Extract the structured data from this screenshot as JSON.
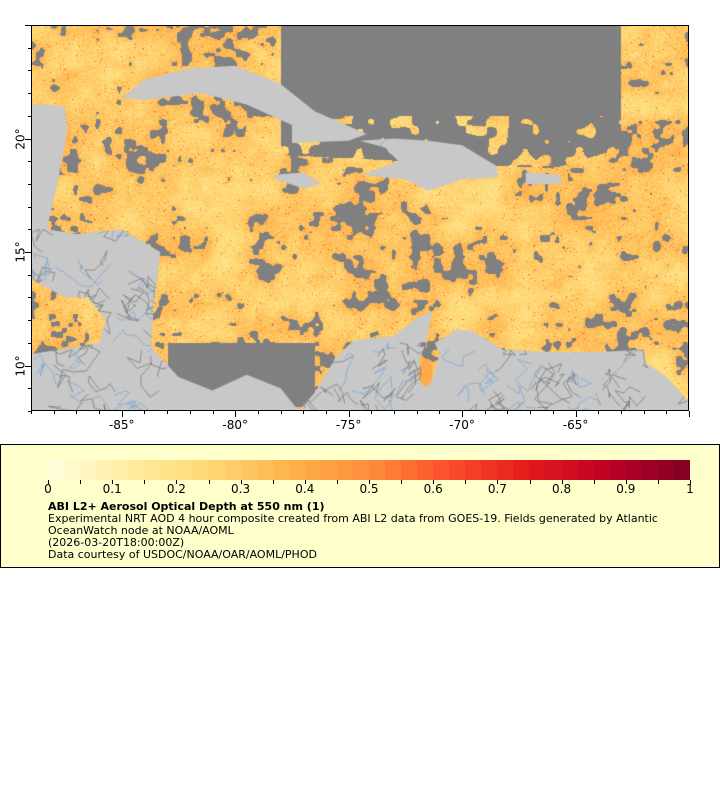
{
  "map": {
    "lon_range": [
      -89,
      -60
    ],
    "lat_range": [
      8,
      25
    ],
    "x_ticks": [
      {
        "value": -85,
        "label": "-85°"
      },
      {
        "value": -80,
        "label": "-80°"
      },
      {
        "value": -75,
        "label": "-75°"
      },
      {
        "value": -70,
        "label": "-70°"
      },
      {
        "value": -65,
        "label": "-65°"
      }
    ],
    "y_ticks": [
      {
        "value": 20,
        "label": "20°"
      },
      {
        "value": 15,
        "label": "15°"
      },
      {
        "value": 10,
        "label": "10°"
      }
    ],
    "colors": {
      "land": "#c8c8c8",
      "no_data": "#808080",
      "rivers": "#6a9fd8",
      "borders": "#666666"
    }
  },
  "legend": {
    "colorbar_range": [
      0,
      1
    ],
    "colorbar_ticks": [
      "0",
      "0.1",
      "0.2",
      "0.3",
      "0.4",
      "0.5",
      "0.6",
      "0.7",
      "0.8",
      "0.9",
      "1"
    ],
    "colormap_stops": [
      "#ffffe0",
      "#ffeda0",
      "#fed976",
      "#feb24c",
      "#fd8d3c",
      "#fc4e2a",
      "#e31a1c",
      "#bd0026",
      "#800026"
    ],
    "title": "ABI L2+ Aerosol Optical Depth at 550 nm (1)",
    "description": "Experimental NRT AOD 4 hour composite created from ABI L2 data from GOES-19. Fields generated by Atlantic OceanWatch node at NOAA/AOML",
    "time": "(2026-03-20T18:00:00Z)",
    "credit": "Data courtesy of USDOC/NOAA/OAR/AOML/PHOD"
  }
}
